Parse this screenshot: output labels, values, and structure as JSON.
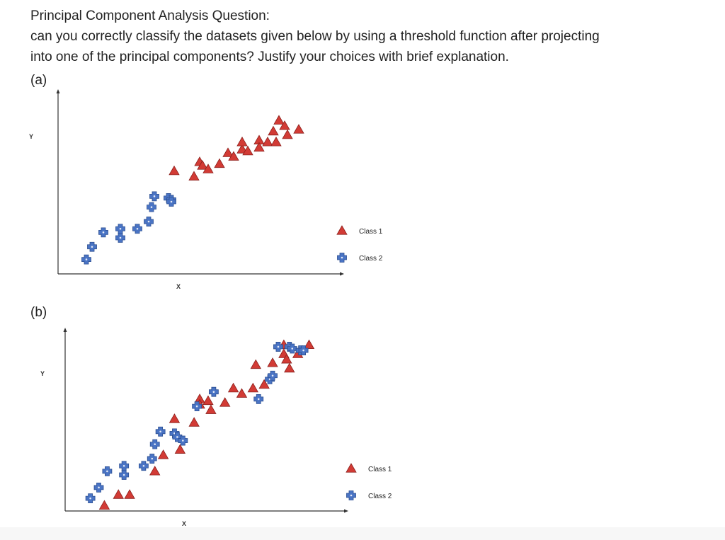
{
  "question": {
    "title": "Principal Component Analysis Question:",
    "line1": "can you correctly classify the datasets given below by using a threshold function after projecting",
    "line2": "into one of the principal components? Justify your choices with brief explanation."
  },
  "colors": {
    "class1": "#d23b35",
    "class1_edge": "#8a1f1b",
    "class2": "#4a74c4",
    "class2_edge": "#2c4f91",
    "axis": "#333333"
  },
  "chart_data": [
    {
      "type": "scatter",
      "part_label": "(a)",
      "xlabel": "X",
      "ylabel": "Y",
      "legend": "right",
      "grid": false,
      "xlim": [
        0,
        100
      ],
      "ylim": [
        0,
        100
      ],
      "series": [
        {
          "name": "Class 1",
          "marker": "triangle",
          "points": [
            [
              41,
              57
            ],
            [
              48,
              54
            ],
            [
              50,
              62
            ],
            [
              51,
              60
            ],
            [
              53,
              58
            ],
            [
              57,
              61
            ],
            [
              60,
              67
            ],
            [
              62,
              65
            ],
            [
              65,
              69
            ],
            [
              65,
              73
            ],
            [
              67,
              68
            ],
            [
              71,
              74
            ],
            [
              71,
              70
            ],
            [
              74,
              73
            ],
            [
              76,
              79
            ],
            [
              77,
              73
            ],
            [
              78,
              85
            ],
            [
              80,
              82
            ],
            [
              81,
              77
            ],
            [
              85,
              80
            ]
          ]
        },
        {
          "name": "Class 2",
          "marker": "cross",
          "points": [
            [
              10,
              8
            ],
            [
              12,
              15
            ],
            [
              16,
              23
            ],
            [
              22,
              20
            ],
            [
              22,
              25
            ],
            [
              28,
              25
            ],
            [
              32,
              29
            ],
            [
              33,
              37
            ],
            [
              34,
              43
            ],
            [
              39,
              42
            ],
            [
              40,
              41
            ],
            [
              40,
              40
            ]
          ]
        }
      ]
    },
    {
      "type": "scatter",
      "part_label": "(b)",
      "xlabel": "X",
      "ylabel": "Y",
      "legend": "right",
      "grid": false,
      "xlim": [
        0,
        100
      ],
      "ylim": [
        0,
        100
      ],
      "series": [
        {
          "name": "Class 1",
          "marker": "triangle",
          "points": [
            [
              14,
              3
            ],
            [
              19,
              9
            ],
            [
              23,
              9
            ],
            [
              32,
              22
            ],
            [
              35,
              31
            ],
            [
              39,
              51
            ],
            [
              41,
              34
            ],
            [
              46,
              49
            ],
            [
              48,
              62
            ],
            [
              48,
              59
            ],
            [
              51,
              61
            ],
            [
              52,
              56
            ],
            [
              57,
              60
            ],
            [
              60,
              68
            ],
            [
              63,
              65
            ],
            [
              67,
              68
            ],
            [
              68,
              81
            ],
            [
              71,
              70
            ],
            [
              74,
              82
            ],
            [
              78,
              87
            ],
            [
              78,
              92
            ],
            [
              79,
              84
            ],
            [
              80,
              79
            ],
            [
              83,
              87
            ],
            [
              87,
              92
            ]
          ]
        },
        {
          "name": "Class 2",
          "marker": "cross",
          "points": [
            [
              9,
              7
            ],
            [
              12,
              13
            ],
            [
              15,
              22
            ],
            [
              21,
              20
            ],
            [
              21,
              25
            ],
            [
              28,
              25
            ],
            [
              31,
              29
            ],
            [
              32,
              37
            ],
            [
              34,
              44
            ],
            [
              39,
              43
            ],
            [
              40,
              41
            ],
            [
              42,
              39
            ],
            [
              47,
              58
            ],
            [
              53,
              66
            ],
            [
              69,
              62
            ],
            [
              73,
              73
            ],
            [
              74,
              75
            ],
            [
              76,
              91
            ],
            [
              80,
              91
            ],
            [
              81,
              90
            ],
            [
              84,
              89
            ],
            [
              85,
              89
            ]
          ]
        }
      ]
    }
  ]
}
